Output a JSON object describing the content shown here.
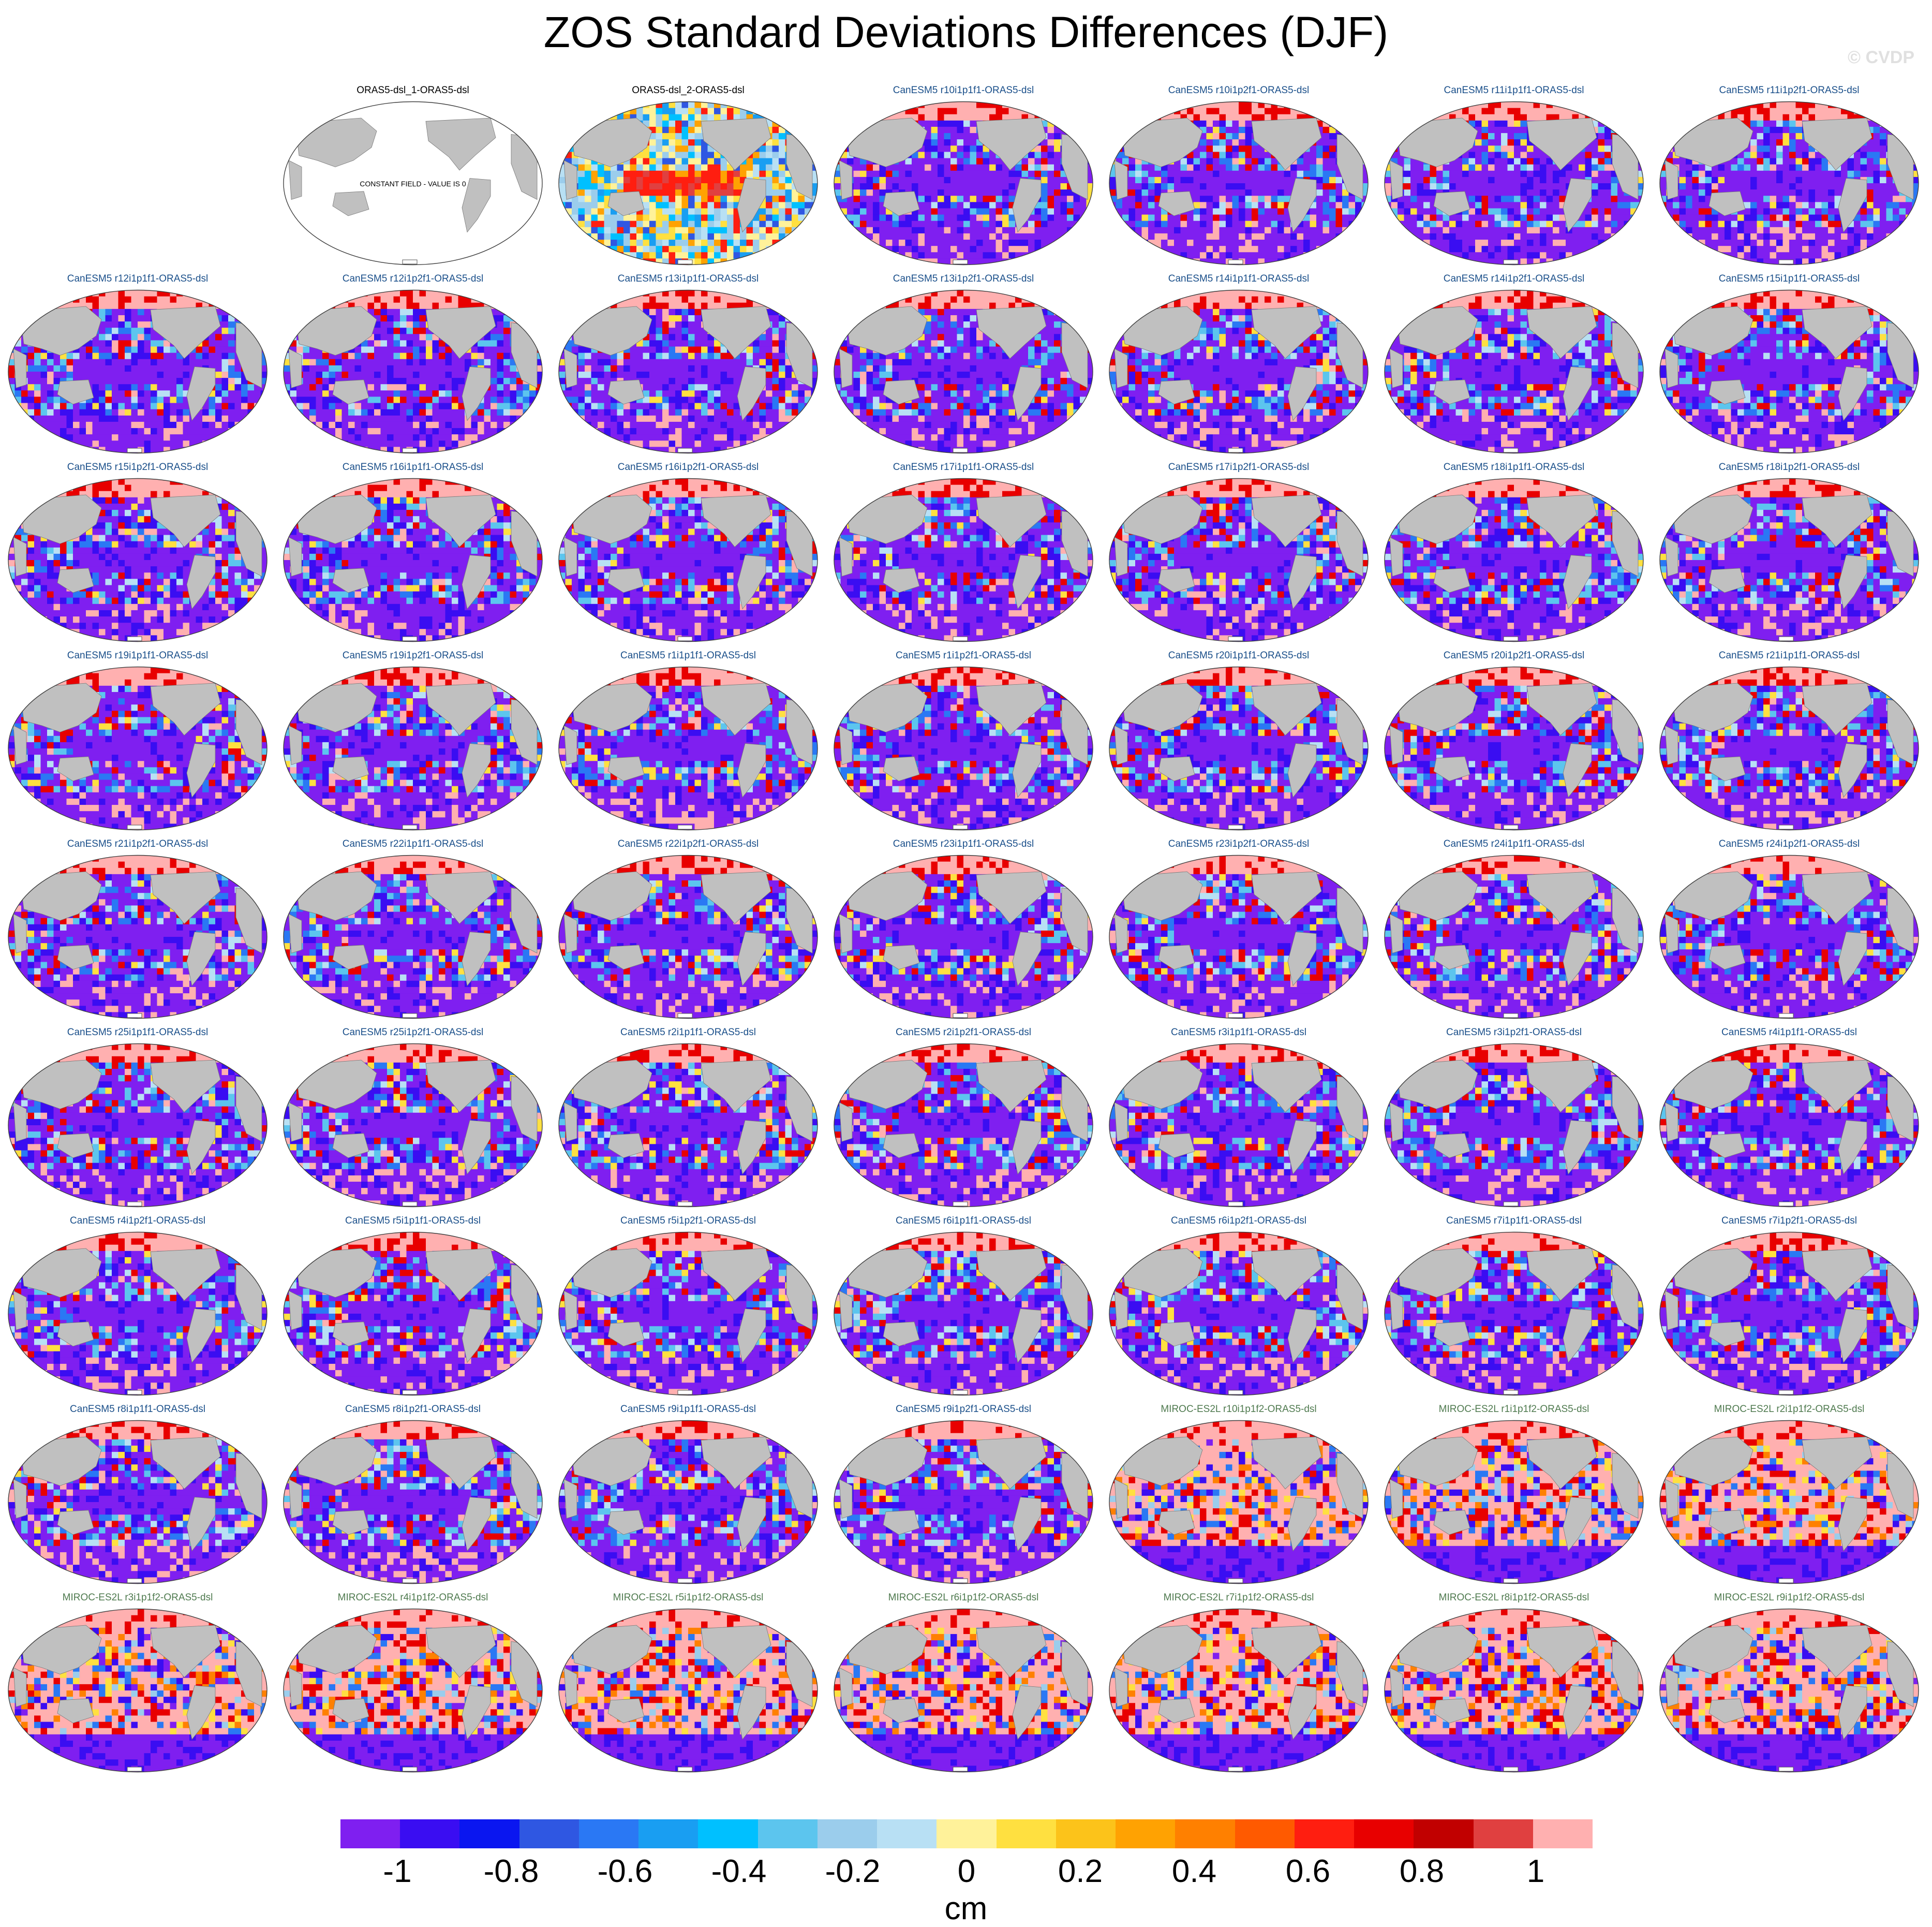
{
  "title": "ZOS Standard Deviations Differences (DJF)",
  "watermark": "© CVDP",
  "constant_note": "CONSTANT FIELD - VALUE IS 0",
  "panel_colors": {
    "ORAS5": "#000000",
    "CanESM5": "#1a4f8a",
    "MIROC-ES2L": "#4f7a4f"
  },
  "map_colors": {
    "land": "#c0c0c0",
    "ocean_blank": "#ffffff",
    "outline": "#404040"
  },
  "chart_data": {
    "type": "heatmap",
    "variable": "ZOS",
    "season": "DJF",
    "units": "cm",
    "colorbar": {
      "tick_labels": [
        "-1",
        "-0.8",
        "-0.6",
        "-0.4",
        "-0.2",
        "0",
        "0.2",
        "0.4",
        "0.6",
        "0.8",
        "1"
      ],
      "tick_values": [
        -1,
        -0.8,
        -0.6,
        -0.4,
        -0.2,
        0,
        0.2,
        0.4,
        0.6,
        0.8,
        1
      ],
      "colors": [
        "#7f1ff0",
        "#3a0df2",
        "#0a16f0",
        "#2f57e2",
        "#2a78f4",
        "#199ef2",
        "#00c0ff",
        "#5cc5ee",
        "#9bcdec",
        "#b8e0f4",
        "#fff29a",
        "#ffe040",
        "#fcc31a",
        "#ffa202",
        "#ff8000",
        "#ff5a00",
        "#ff1e10",
        "#e80000",
        "#c10000",
        "#e04040",
        "#ffb0b0"
      ]
    },
    "panels": [
      {
        "label": "",
        "group": "empty"
      },
      {
        "label": "ORAS5-dsl_1-ORAS5-dsl",
        "group": "ORAS5",
        "pattern": "constant"
      },
      {
        "label": "ORAS5-dsl_2-ORAS5-dsl",
        "group": "ORAS5",
        "pattern": "mixed"
      },
      {
        "label": "CanESM5 r10i1p1f1-ORAS5-dsl",
        "group": "CanESM5",
        "pattern": "low"
      },
      {
        "label": "CanESM5 r10i1p2f1-ORAS5-dsl",
        "group": "CanESM5",
        "pattern": "low"
      },
      {
        "label": "CanESM5 r11i1p1f1-ORAS5-dsl",
        "group": "CanESM5",
        "pattern": "low"
      },
      {
        "label": "CanESM5 r11i1p2f1-ORAS5-dsl",
        "group": "CanESM5",
        "pattern": "low"
      },
      {
        "label": "CanESM5 r12i1p1f1-ORAS5-dsl",
        "group": "CanESM5",
        "pattern": "low"
      },
      {
        "label": "CanESM5 r12i1p2f1-ORAS5-dsl",
        "group": "CanESM5",
        "pattern": "low"
      },
      {
        "label": "CanESM5 r13i1p1f1-ORAS5-dsl",
        "group": "CanESM5",
        "pattern": "low"
      },
      {
        "label": "CanESM5 r13i1p2f1-ORAS5-dsl",
        "group": "CanESM5",
        "pattern": "low"
      },
      {
        "label": "CanESM5 r14i1p1f1-ORAS5-dsl",
        "group": "CanESM5",
        "pattern": "low"
      },
      {
        "label": "CanESM5 r14i1p2f1-ORAS5-dsl",
        "group": "CanESM5",
        "pattern": "low"
      },
      {
        "label": "CanESM5 r15i1p1f1-ORAS5-dsl",
        "group": "CanESM5",
        "pattern": "low"
      },
      {
        "label": "CanESM5 r15i1p2f1-ORAS5-dsl",
        "group": "CanESM5",
        "pattern": "low"
      },
      {
        "label": "CanESM5 r16i1p1f1-ORAS5-dsl",
        "group": "CanESM5",
        "pattern": "low"
      },
      {
        "label": "CanESM5 r16i1p2f1-ORAS5-dsl",
        "group": "CanESM5",
        "pattern": "low"
      },
      {
        "label": "CanESM5 r17i1p1f1-ORAS5-dsl",
        "group": "CanESM5",
        "pattern": "low"
      },
      {
        "label": "CanESM5 r17i1p2f1-ORAS5-dsl",
        "group": "CanESM5",
        "pattern": "low"
      },
      {
        "label": "CanESM5 r18i1p1f1-ORAS5-dsl",
        "group": "CanESM5",
        "pattern": "low"
      },
      {
        "label": "CanESM5 r18i1p2f1-ORAS5-dsl",
        "group": "CanESM5",
        "pattern": "low"
      },
      {
        "label": "CanESM5 r19i1p1f1-ORAS5-dsl",
        "group": "CanESM5",
        "pattern": "low"
      },
      {
        "label": "CanESM5 r19i1p2f1-ORAS5-dsl",
        "group": "CanESM5",
        "pattern": "low"
      },
      {
        "label": "CanESM5 r1i1p1f1-ORAS5-dsl",
        "group": "CanESM5",
        "pattern": "low"
      },
      {
        "label": "CanESM5 r1i1p2f1-ORAS5-dsl",
        "group": "CanESM5",
        "pattern": "low"
      },
      {
        "label": "CanESM5 r20i1p1f1-ORAS5-dsl",
        "group": "CanESM5",
        "pattern": "low"
      },
      {
        "label": "CanESM5 r20i1p2f1-ORAS5-dsl",
        "group": "CanESM5",
        "pattern": "low"
      },
      {
        "label": "CanESM5 r21i1p1f1-ORAS5-dsl",
        "group": "CanESM5",
        "pattern": "low"
      },
      {
        "label": "CanESM5 r21i1p2f1-ORAS5-dsl",
        "group": "CanESM5",
        "pattern": "low"
      },
      {
        "label": "CanESM5 r22i1p1f1-ORAS5-dsl",
        "group": "CanESM5",
        "pattern": "low"
      },
      {
        "label": "CanESM5 r22i1p2f1-ORAS5-dsl",
        "group": "CanESM5",
        "pattern": "low"
      },
      {
        "label": "CanESM5 r23i1p1f1-ORAS5-dsl",
        "group": "CanESM5",
        "pattern": "low"
      },
      {
        "label": "CanESM5 r23i1p2f1-ORAS5-dsl",
        "group": "CanESM5",
        "pattern": "low"
      },
      {
        "label": "CanESM5 r24i1p1f1-ORAS5-dsl",
        "group": "CanESM5",
        "pattern": "low"
      },
      {
        "label": "CanESM5 r24i1p2f1-ORAS5-dsl",
        "group": "CanESM5",
        "pattern": "low"
      },
      {
        "label": "CanESM5 r25i1p1f1-ORAS5-dsl",
        "group": "CanESM5",
        "pattern": "low"
      },
      {
        "label": "CanESM5 r25i1p2f1-ORAS5-dsl",
        "group": "CanESM5",
        "pattern": "low"
      },
      {
        "label": "CanESM5 r2i1p1f1-ORAS5-dsl",
        "group": "CanESM5",
        "pattern": "low"
      },
      {
        "label": "CanESM5 r2i1p2f1-ORAS5-dsl",
        "group": "CanESM5",
        "pattern": "low"
      },
      {
        "label": "CanESM5 r3i1p1f1-ORAS5-dsl",
        "group": "CanESM5",
        "pattern": "low"
      },
      {
        "label": "CanESM5 r3i1p2f1-ORAS5-dsl",
        "group": "CanESM5",
        "pattern": "low"
      },
      {
        "label": "CanESM5 r4i1p1f1-ORAS5-dsl",
        "group": "CanESM5",
        "pattern": "low"
      },
      {
        "label": "CanESM5 r4i1p2f1-ORAS5-dsl",
        "group": "CanESM5",
        "pattern": "low"
      },
      {
        "label": "CanESM5 r5i1p1f1-ORAS5-dsl",
        "group": "CanESM5",
        "pattern": "low"
      },
      {
        "label": "CanESM5 r5i1p2f1-ORAS5-dsl",
        "group": "CanESM5",
        "pattern": "low"
      },
      {
        "label": "CanESM5 r6i1p1f1-ORAS5-dsl",
        "group": "CanESM5",
        "pattern": "low"
      },
      {
        "label": "CanESM5 r6i1p2f1-ORAS5-dsl",
        "group": "CanESM5",
        "pattern": "low"
      },
      {
        "label": "CanESM5 r7i1p1f1-ORAS5-dsl",
        "group": "CanESM5",
        "pattern": "low"
      },
      {
        "label": "CanESM5 r7i1p2f1-ORAS5-dsl",
        "group": "CanESM5",
        "pattern": "low"
      },
      {
        "label": "CanESM5 r8i1p1f1-ORAS5-dsl",
        "group": "CanESM5",
        "pattern": "low"
      },
      {
        "label": "CanESM5 r8i1p2f1-ORAS5-dsl",
        "group": "CanESM5",
        "pattern": "low"
      },
      {
        "label": "CanESM5 r9i1p1f1-ORAS5-dsl",
        "group": "CanESM5",
        "pattern": "low"
      },
      {
        "label": "CanESM5 r9i1p2f1-ORAS5-dsl",
        "group": "CanESM5",
        "pattern": "low"
      },
      {
        "label": "MIROC-ES2L r10i1p1f2-ORAS5-dsl",
        "group": "MIROC-ES2L",
        "pattern": "high"
      },
      {
        "label": "MIROC-ES2L r1i1p1f2-ORAS5-dsl",
        "group": "MIROC-ES2L",
        "pattern": "high"
      },
      {
        "label": "MIROC-ES2L r2i1p1f2-ORAS5-dsl",
        "group": "MIROC-ES2L",
        "pattern": "high"
      },
      {
        "label": "MIROC-ES2L r3i1p1f2-ORAS5-dsl",
        "group": "MIROC-ES2L",
        "pattern": "high"
      },
      {
        "label": "MIROC-ES2L r4i1p1f2-ORAS5-dsl",
        "group": "MIROC-ES2L",
        "pattern": "high"
      },
      {
        "label": "MIROC-ES2L r5i1p1f2-ORAS5-dsl",
        "group": "MIROC-ES2L",
        "pattern": "high"
      },
      {
        "label": "MIROC-ES2L r6i1p1f2-ORAS5-dsl",
        "group": "MIROC-ES2L",
        "pattern": "high"
      },
      {
        "label": "MIROC-ES2L r7i1p1f2-ORAS5-dsl",
        "group": "MIROC-ES2L",
        "pattern": "high"
      },
      {
        "label": "MIROC-ES2L r8i1p1f2-ORAS5-dsl",
        "group": "MIROC-ES2L",
        "pattern": "high"
      },
      {
        "label": "MIROC-ES2L r9i1p1f2-ORAS5-dsl",
        "group": "MIROC-ES2L",
        "pattern": "high"
      }
    ]
  }
}
